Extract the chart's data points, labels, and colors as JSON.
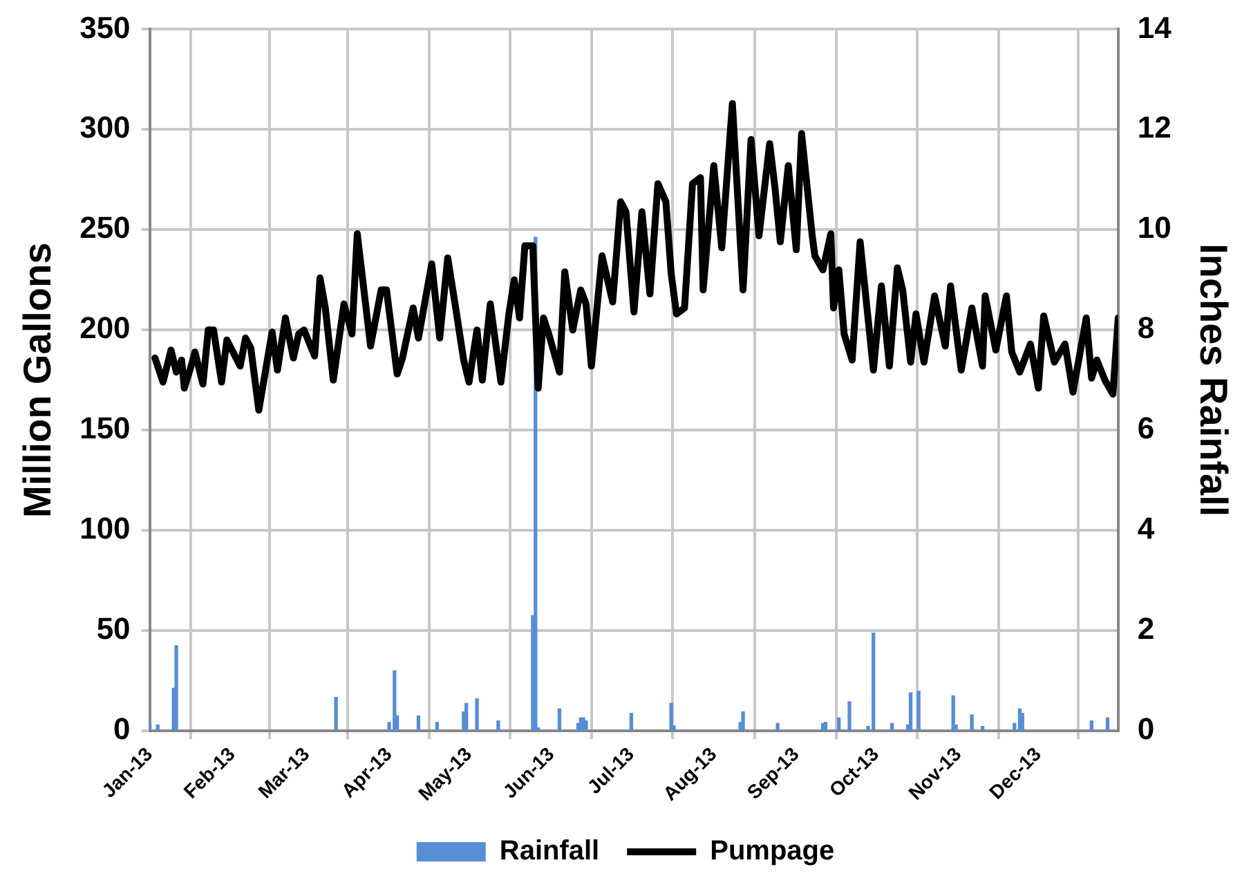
{
  "chart_data": {
    "type": "line",
    "ylabel": "Million Gallons",
    "y2label": "Inches Rainfall",
    "xlim": [
      "2013-01-01",
      "2013-12-31"
    ],
    "xticks": [
      {
        "value": "2013-01-01",
        "label": "Jan-13"
      },
      {
        "value": "2013-02-01",
        "label": "Feb-13"
      },
      {
        "value": "2013-03-01",
        "label": "Mar-13"
      },
      {
        "value": "2013-04-01",
        "label": "Apr-13"
      },
      {
        "value": "2013-05-01",
        "label": "May-13"
      },
      {
        "value": "2013-06-01",
        "label": "Jun-13"
      },
      {
        "value": "2013-07-01",
        "label": "Jul-13"
      },
      {
        "value": "2013-08-01",
        "label": "Aug-13"
      },
      {
        "value": "2013-09-01",
        "label": "Sep-13"
      },
      {
        "value": "2013-10-01",
        "label": "Oct-13"
      },
      {
        "value": "2013-11-01",
        "label": "Nov-13"
      },
      {
        "value": "2013-12-01",
        "label": "Dec-13"
      }
    ],
    "ylim": [
      0,
      350
    ],
    "yticks": [
      0,
      50,
      100,
      150,
      200,
      250,
      300,
      350
    ],
    "y2lim": [
      0,
      14
    ],
    "y2ticks": [
      0,
      2,
      4,
      6,
      8,
      10,
      12,
      14
    ],
    "grid": true,
    "legend": "bottom",
    "line_style": "solid",
    "series": [
      {
        "name": "Rainfall",
        "type": "bar",
        "axis": "y2",
        "color": "#558ed5",
        "x": [
          "2013-01-01",
          "2013-01-04",
          "2013-01-10",
          "2013-01-11",
          "2013-03-12",
          "2013-04-01",
          "2013-04-03",
          "2013-04-04",
          "2013-04-12",
          "2013-04-19",
          "2013-04-29",
          "2013-04-30",
          "2013-05-04",
          "2013-05-12",
          "2013-05-25",
          "2013-05-26",
          "2013-05-27",
          "2013-06-04",
          "2013-06-11",
          "2013-06-12",
          "2013-06-13",
          "2013-06-14",
          "2013-07-01",
          "2013-07-16",
          "2013-07-17",
          "2013-08-11",
          "2013-08-12",
          "2013-08-25",
          "2013-09-11",
          "2013-09-12",
          "2013-09-17",
          "2013-09-21",
          "2013-09-28",
          "2013-09-30",
          "2013-10-07",
          "2013-10-13",
          "2013-10-14",
          "2013-10-17",
          "2013-10-30",
          "2013-10-31",
          "2013-11-06",
          "2013-11-10",
          "2013-11-22",
          "2013-11-24",
          "2013-11-25",
          "2013-12-21",
          "2013-12-27"
        ],
        "values": [
          0.15,
          0.12,
          0.85,
          1.7,
          0.67,
          0.17,
          1.2,
          0.3,
          0.3,
          0.17,
          0.38,
          0.55,
          0.64,
          0.2,
          2.3,
          9.85,
          0.06,
          0.44,
          0.15,
          0.26,
          0.26,
          0.2,
          0.35,
          0.55,
          0.1,
          0.17,
          0.38,
          0.15,
          0.15,
          0.17,
          0.26,
          0.58,
          0.09,
          1.95,
          0.15,
          0.12,
          0.76,
          0.79,
          0.7,
          0.12,
          0.32,
          0.09,
          0.15,
          0.44,
          0.35,
          0.2,
          0.26
        ]
      },
      {
        "name": "Pumpage",
        "color": "#000000",
        "x": [
          "2013-01-03",
          "2013-01-06",
          "2013-01-09",
          "2013-01-11",
          "2013-01-13",
          "2013-01-14",
          "2013-01-17",
          "2013-01-18",
          "2013-01-21",
          "2013-01-23",
          "2013-01-25",
          "2013-01-28",
          "2013-01-30",
          "2013-02-04",
          "2013-02-06",
          "2013-02-08",
          "2013-02-11",
          "2013-02-16",
          "2013-02-18",
          "2013-02-21",
          "2013-02-24",
          "2013-02-26",
          "2013-02-28",
          "2013-03-04",
          "2013-03-06",
          "2013-03-08",
          "2013-03-11",
          "2013-03-15",
          "2013-03-18",
          "2013-03-20",
          "2013-03-25",
          "2013-03-29",
          "2013-03-31",
          "2013-04-04",
          "2013-04-06",
          "2013-04-10",
          "2013-04-12",
          "2013-04-17",
          "2013-04-20",
          "2013-04-23",
          "2013-04-26",
          "2013-04-29",
          "2013-05-01",
          "2013-05-04",
          "2013-05-06",
          "2013-05-09",
          "2013-05-13",
          "2013-05-16",
          "2013-05-18",
          "2013-05-20",
          "2013-05-22",
          "2013-05-25",
          "2013-05-27",
          "2013-05-29",
          "2013-05-31",
          "2013-06-04",
          "2013-06-06",
          "2013-06-09",
          "2013-06-12",
          "2013-06-14",
          "2013-06-16",
          "2013-06-20",
          "2013-06-24",
          "2013-06-27",
          "2013-06-29",
          "2013-07-02",
          "2013-07-05",
          "2013-07-08",
          "2013-07-11",
          "2013-07-14",
          "2013-07-16",
          "2013-07-18",
          "2013-07-21",
          "2013-07-24",
          "2013-07-27",
          "2013-07-28",
          "2013-08-01",
          "2013-08-04",
          "2013-08-08",
          "2013-08-12",
          "2013-08-15",
          "2013-08-18",
          "2013-08-22",
          "2013-08-24",
          "2013-08-26",
          "2013-08-29",
          "2013-09-01",
          "2013-09-03",
          "2013-09-07",
          "2013-09-08",
          "2013-09-11",
          "2013-09-14",
          "2013-09-15",
          "2013-09-17",
          "2013-09-19",
          "2013-09-22",
          "2013-09-25",
          "2013-09-30",
          "2013-10-03",
          "2013-10-06",
          "2013-10-09",
          "2013-10-11",
          "2013-10-14",
          "2013-10-16",
          "2013-10-19",
          "2013-10-23",
          "2013-10-27",
          "2013-10-29",
          "2013-11-02",
          "2013-11-06",
          "2013-11-10",
          "2013-11-11",
          "2013-11-15",
          "2013-11-19",
          "2013-11-21",
          "2013-11-24",
          "2013-11-28",
          "2013-12-01",
          "2013-12-03",
          "2013-12-07",
          "2013-12-11",
          "2013-12-14",
          "2013-12-19",
          "2013-12-21",
          "2013-12-23",
          "2013-12-26",
          "2013-12-29",
          "2013-12-31"
        ],
        "values": [
          186,
          174,
          190,
          179,
          185,
          171,
          184,
          189,
          173,
          200,
          200,
          174,
          195,
          182,
          196,
          191,
          160,
          199,
          180,
          206,
          186,
          198,
          200,
          187,
          226,
          211,
          175,
          213,
          198,
          248,
          192,
          220,
          220,
          178,
          186,
          211,
          196,
          233,
          196,
          236,
          211,
          185,
          174,
          200,
          175,
          213,
          174,
          208,
          225,
          206,
          242,
          242,
          171,
          206,
          198,
          179,
          229,
          200,
          220,
          213,
          182,
          237,
          214,
          264,
          259,
          209,
          259,
          218,
          273,
          264,
          228,
          208,
          211,
          273,
          276,
          220,
          282,
          241,
          313,
          220,
          295,
          247,
          293,
          271,
          244,
          282,
          240,
          298,
          247,
          237,
          230,
          248,
          211,
          230,
          198,
          185,
          244,
          180,
          222,
          182,
          231,
          220,
          184,
          208,
          184,
          217,
          192,
          222,
          180,
          211,
          182,
          217,
          190,
          217,
          189,
          179,
          193,
          171,
          207,
          184,
          193,
          169,
          206,
          176,
          185,
          175,
          168,
          206
        ]
      }
    ]
  }
}
